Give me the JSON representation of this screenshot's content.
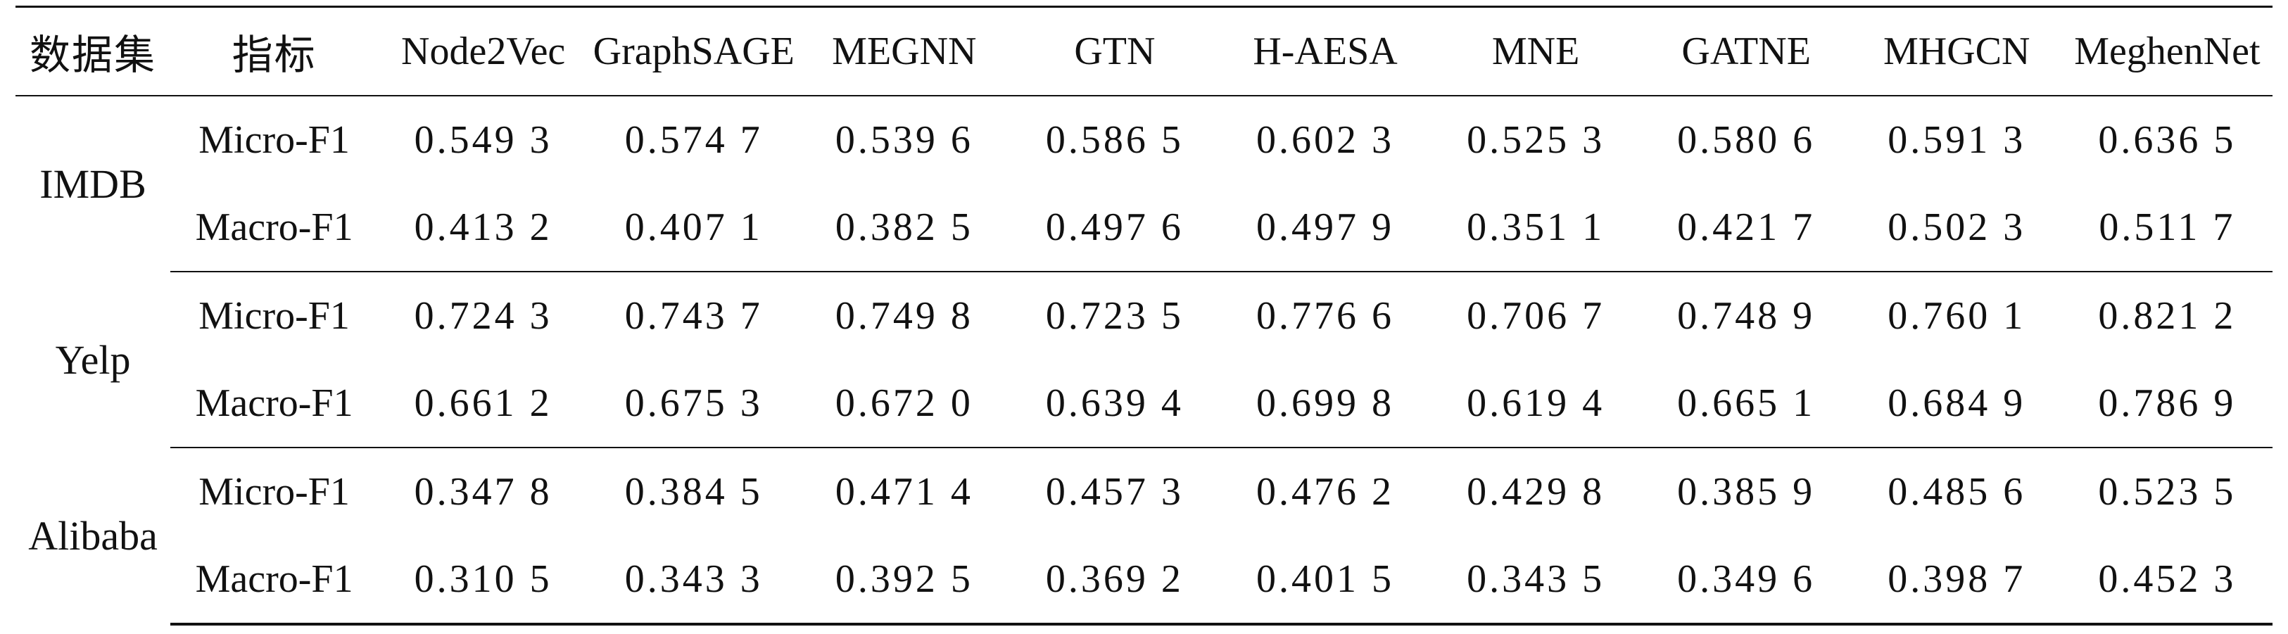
{
  "table": {
    "headers": [
      "数据集",
      "指标",
      "Node2Vec",
      "GraphSAGE",
      "MEGNN",
      "GTN",
      "H-AESA",
      "MNE",
      "GATNE",
      "MHGCN",
      "MeghenNet"
    ],
    "groups": [
      {
        "dataset": "IMDB",
        "rows": [
          {
            "metric": "Micro-F1",
            "values": [
              "0.549 3",
              "0.574 7",
              "0.539 6",
              "0.586 5",
              "0.602 3",
              "0.525 3",
              "0.580 6",
              "0.591 3",
              "0.636 5"
            ]
          },
          {
            "metric": "Macro-F1",
            "values": [
              "0.413 2",
              "0.407 1",
              "0.382 5",
              "0.497 6",
              "0.497 9",
              "0.351 1",
              "0.421 7",
              "0.502 3",
              "0.511 7"
            ]
          }
        ]
      },
      {
        "dataset": "Yelp",
        "rows": [
          {
            "metric": "Micro-F1",
            "values": [
              "0.724 3",
              "0.743 7",
              "0.749 8",
              "0.723 5",
              "0.776 6",
              "0.706 7",
              "0.748 9",
              "0.760 1",
              "0.821 2"
            ]
          },
          {
            "metric": "Macro-F1",
            "values": [
              "0.661 2",
              "0.675 3",
              "0.672 0",
              "0.639 4",
              "0.699 8",
              "0.619 4",
              "0.665 1",
              "0.684 9",
              "0.786 9"
            ]
          }
        ]
      },
      {
        "dataset": "Alibaba",
        "rows": [
          {
            "metric": "Micro-F1",
            "values": [
              "0.347 8",
              "0.384 5",
              "0.471 4",
              "0.457 3",
              "0.476 2",
              "0.429 8",
              "0.385 9",
              "0.485 6",
              "0.523 5"
            ]
          },
          {
            "metric": "Macro-F1",
            "values": [
              "0.310 5",
              "0.343 3",
              "0.392 5",
              "0.369 2",
              "0.401 5",
              "0.343 5",
              "0.349 6",
              "0.398 7",
              "0.452 3"
            ]
          }
        ]
      }
    ]
  }
}
